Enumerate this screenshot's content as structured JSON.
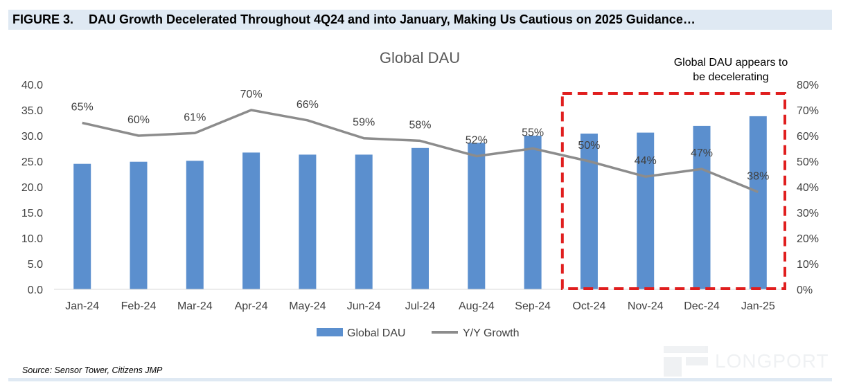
{
  "figure": {
    "label": "FIGURE 3.",
    "title": "DAU Growth Decelerated Throughout 4Q24 and into January, Making Us Cautious on 2025 Guidance…"
  },
  "source": "Source: Sensor Tower, Citizens JMP",
  "watermark": "LONGPORT",
  "colors": {
    "bar": "#5b8fce",
    "line": "#8c8c8c",
    "highlight_box": "#e01e1e",
    "header_band": "#dfe9f3"
  },
  "chart_data": {
    "type": "bar",
    "title": "Global DAU",
    "categories": [
      "Jan-24",
      "Feb-24",
      "Mar-24",
      "Apr-24",
      "May-24",
      "Jun-24",
      "Jul-24",
      "Aug-24",
      "Sep-24",
      "Oct-24",
      "Nov-24",
      "Dec-24",
      "Jan-25"
    ],
    "series": [
      {
        "name": "Global DAU",
        "type": "bar",
        "axis": "left",
        "values": [
          24.5,
          24.9,
          25.1,
          26.7,
          26.3,
          26.3,
          27.6,
          28.6,
          30.0,
          30.4,
          30.6,
          31.9,
          33.8
        ]
      },
      {
        "name": "Y/Y Growth",
        "type": "line",
        "axis": "right",
        "values": [
          65,
          60,
          61,
          70,
          66,
          59,
          58,
          52,
          55,
          50,
          44,
          47,
          38
        ],
        "labels": [
          "65%",
          "60%",
          "61%",
          "70%",
          "66%",
          "59%",
          "58%",
          "52%",
          "55%",
          "50%",
          "44%",
          "47%",
          "38%"
        ]
      }
    ],
    "y_left": {
      "min": 0,
      "max": 40,
      "ticks": [
        "0.0",
        "5.0",
        "10.0",
        "15.0",
        "20.0",
        "25.0",
        "30.0",
        "35.0",
        "40.0"
      ]
    },
    "y_right": {
      "min": 0,
      "max": 80,
      "ticks": [
        "0%",
        "10%",
        "20%",
        "30%",
        "40%",
        "50%",
        "60%",
        "70%",
        "80%"
      ]
    },
    "grid": false,
    "legend_position": "bottom",
    "annotation": {
      "text_line1": "Global DAU appears to",
      "text_line2": "be decelerating",
      "highlight_categories": [
        "Oct-24",
        "Nov-24",
        "Dec-24",
        "Jan-25"
      ]
    }
  }
}
